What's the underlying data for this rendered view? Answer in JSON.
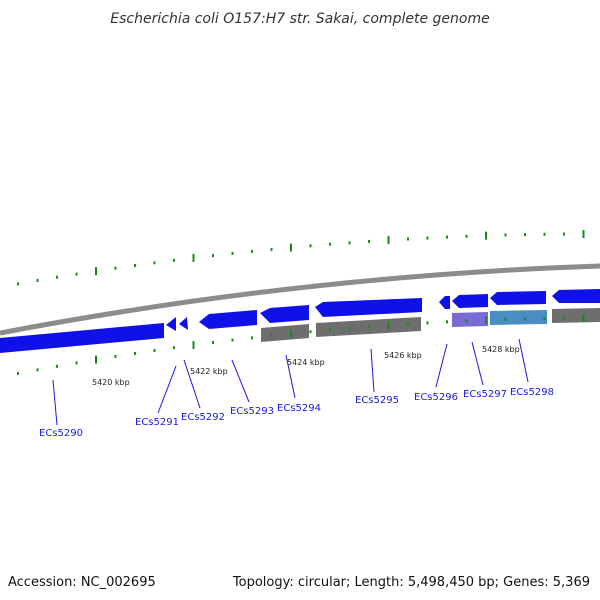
{
  "title": "Escherichia coli O157:H7 str. Sakai, complete genome",
  "footer": {
    "accession": "Accession: NC_002695",
    "topology": "Topology: circular; Length: 5,498,450 bp; Genes: 5,369"
  },
  "colors": {
    "background": "#ffffff",
    "backbone": "#8c8c8c",
    "gene_forward": "#1010e8",
    "gene_reverse_gray": "#6e6e6e",
    "gene_purple": "#7a6ad6",
    "gene_teal": "#4a8cc4",
    "tick": "#1a8a1a",
    "label": "#1a1adb"
  },
  "scale_labels": [
    "5420 kbp",
    "5422 kbp",
    "5424 kbp",
    "5426 kbp",
    "5428 kbp"
  ],
  "genes": [
    {
      "id": "ECs5290",
      "label": "ECs5290"
    },
    {
      "id": "ECs5291",
      "label": "ECs5291"
    },
    {
      "id": "ECs5292",
      "label": "ECs5292"
    },
    {
      "id": "ECs5293",
      "label": "ECs5293"
    },
    {
      "id": "ECs5294",
      "label": "ECs5294"
    },
    {
      "id": "ECs5295",
      "label": "ECs5295"
    },
    {
      "id": "ECs5296",
      "label": "ECs5296"
    },
    {
      "id": "ECs5297",
      "label": "ECs5297"
    },
    {
      "id": "ECs5298",
      "label": "ECs5298"
    }
  ]
}
